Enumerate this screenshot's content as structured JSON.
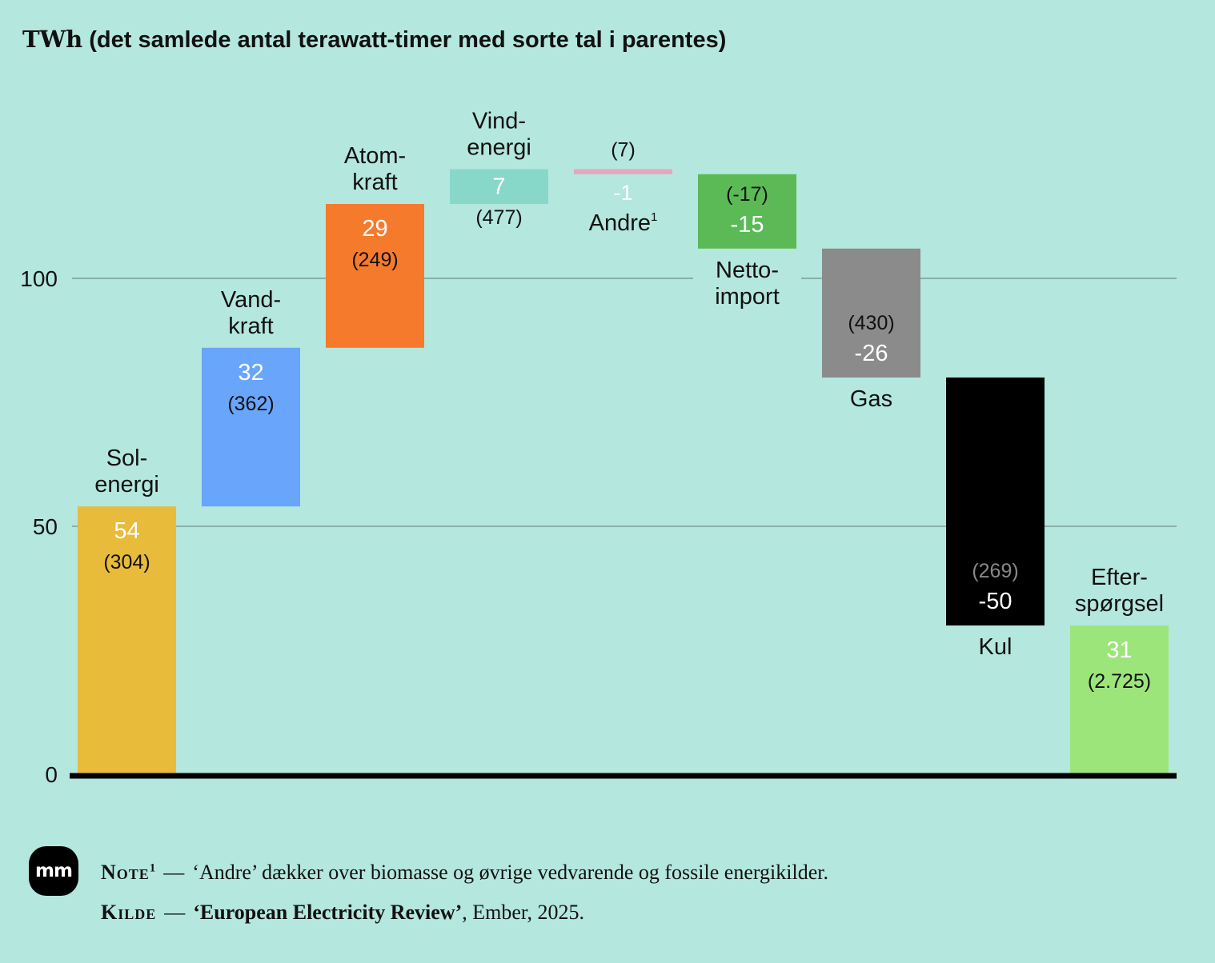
{
  "title": {
    "unit": "TWh",
    "text": "(det samlede antal terawatt-timer med sorte tal i parentes)"
  },
  "chart_data": {
    "type": "waterfall",
    "ylim": [
      0,
      130
    ],
    "yticks": [
      0,
      50,
      100
    ],
    "bars": [
      {
        "lines": [
          "Sol-",
          "energi"
        ],
        "change": 54,
        "change_label": "54",
        "total_label": "(304)",
        "color": "#e9bb3b",
        "from": 0,
        "to": 54
      },
      {
        "lines": [
          "Vand-",
          "kraft"
        ],
        "change": 32,
        "change_label": "32",
        "total_label": "(362)",
        "color": "#69a5fb",
        "from": 54,
        "to": 86
      },
      {
        "lines": [
          "Atom-",
          "kraft"
        ],
        "change": 29,
        "change_label": "29",
        "total_label": "(249)",
        "color": "#f57a2c",
        "from": 86,
        "to": 115
      },
      {
        "lines": [
          "Vind-",
          "energi"
        ],
        "change": 7,
        "change_label": "7",
        "total_label": "(477)",
        "color": "#88d8c9",
        "from": 115,
        "to": 122
      },
      {
        "lines": [
          "Andre"
        ],
        "sup": "1",
        "change": -1,
        "change_label": "-1",
        "total_label": "(7)",
        "color": "#e8a4bd",
        "from": 122,
        "to": 121
      },
      {
        "lines": [
          "Netto-",
          "import"
        ],
        "change": -15,
        "change_label": "-15",
        "total_label": "(-17)",
        "color": "#5bba56",
        "from": 121,
        "to": 106
      },
      {
        "lines": [
          "Gas"
        ],
        "change": -26,
        "change_label": "-26",
        "total_label": "(430)",
        "color": "#8b8b8b",
        "from": 106,
        "to": 80
      },
      {
        "lines": [
          "Kul"
        ],
        "change": -50,
        "change_label": "-50",
        "total_label": "(269)",
        "color": "#000000",
        "from": 80,
        "to": 30
      },
      {
        "lines": [
          "Efter-",
          "spørgsel"
        ],
        "change": 31,
        "change_label": "31",
        "total_label": "(2.725)",
        "color": "#9ce57b",
        "from": 0,
        "to": 30
      }
    ]
  },
  "footer": {
    "logo": "mm",
    "note_key": "Note",
    "note_sup": "1",
    "dash": "—",
    "note_text": "‘Andre’ dækker over biomasse og øvrige vedvarende og fossile energikilder.",
    "source_key": "Kilde",
    "source_title": "‘European Electricity Review’",
    "source_rest": ", Ember, 2025."
  }
}
